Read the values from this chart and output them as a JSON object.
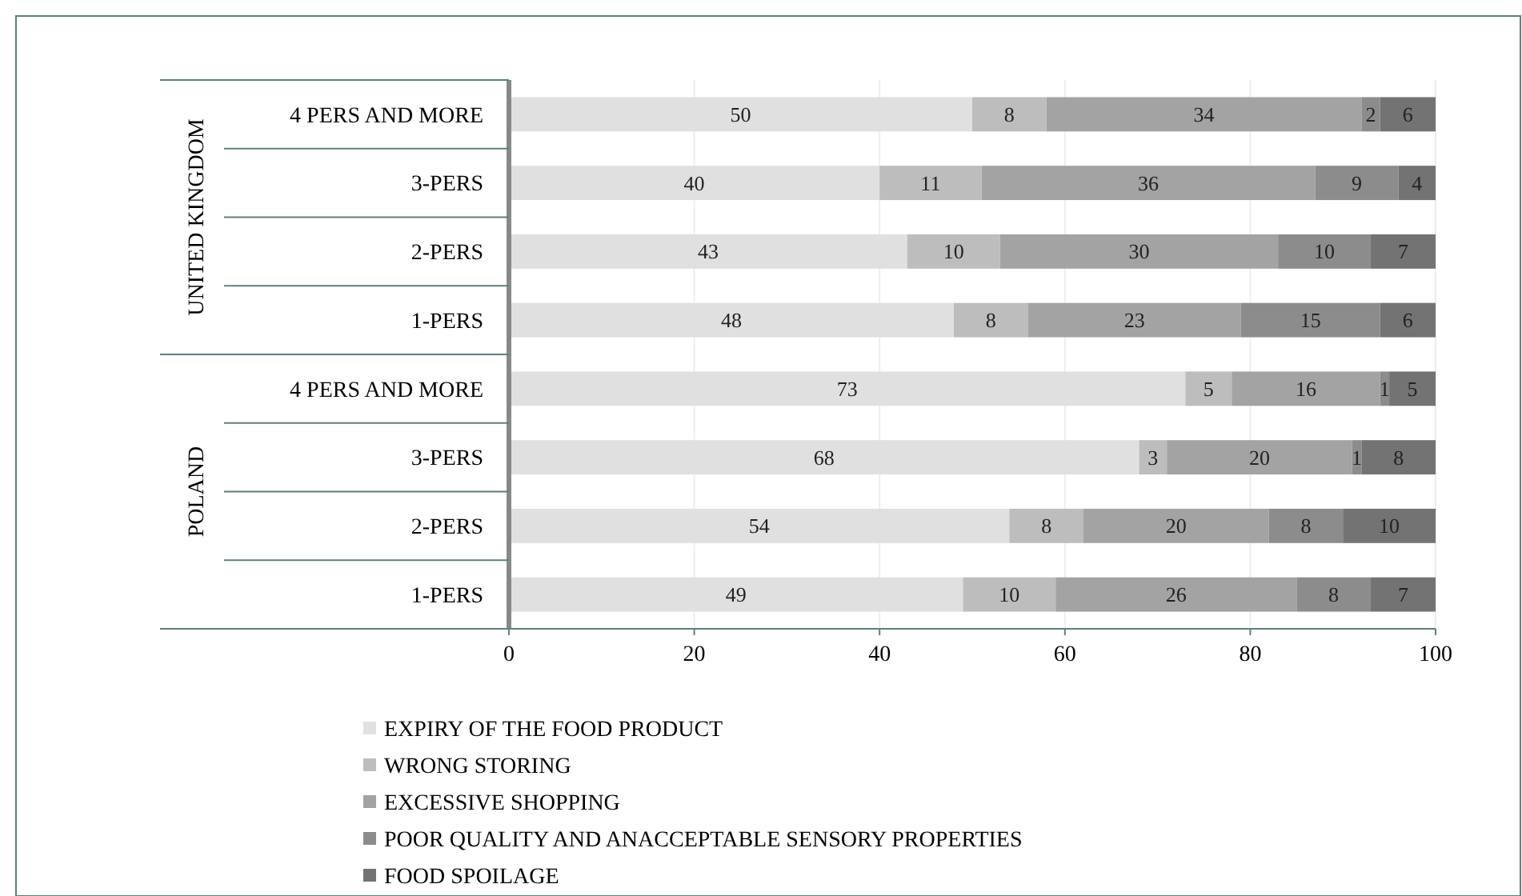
{
  "chart_data": {
    "type": "bar",
    "orientation": "horizontal",
    "stacked": true,
    "categories": [
      "4 PERS AND MORE",
      "3-PERS",
      "2-PERS",
      "1-PERS",
      "4 PERS AND MORE",
      "3-PERS",
      "2-PERS",
      "1-PERS"
    ],
    "annotations": [
      "UNITED KINGDOM",
      "POLAND"
    ],
    "series": [
      {
        "name": "EXPIRY OF THE FOOD PRODUCT",
        "color": "#e0e0e0",
        "values": [
          50,
          40,
          43,
          48,
          73,
          68,
          54,
          49
        ]
      },
      {
        "name": "WRONG STORING",
        "color": "#bdbdbd",
        "values": [
          8,
          11,
          10,
          8,
          5,
          3,
          8,
          10
        ]
      },
      {
        "name": "EXCESSIVE SHOPPING",
        "color": "#a3a3a3",
        "values": [
          34,
          36,
          30,
          23,
          16,
          20,
          20,
          26
        ]
      },
      {
        "name": "POOR QUALITY AND ANACCEPTABLE SENSORY PROPERTIES",
        "color": "#8c8c8c",
        "values": [
          2,
          9,
          10,
          15,
          1,
          1,
          8,
          8
        ]
      },
      {
        "name": "FOOD SPOILAGE",
        "color": "#737373",
        "values": [
          6,
          4,
          7,
          6,
          5,
          8,
          10,
          7
        ]
      }
    ],
    "xlim": [
      0,
      100
    ],
    "xticks": [
      0,
      20,
      40,
      60,
      80,
      100
    ],
    "grid": "x",
    "legend": "bottom",
    "data_labels": true
  }
}
